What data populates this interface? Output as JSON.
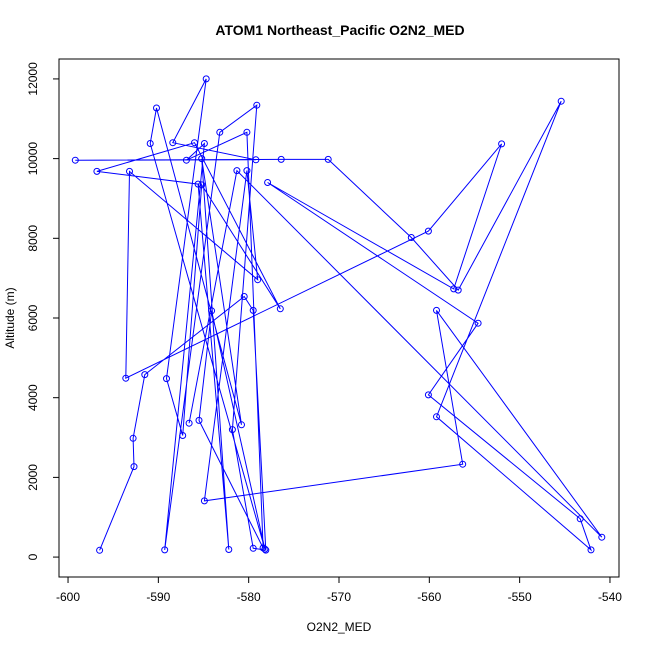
{
  "chart_data": {
    "type": "scatter",
    "title": "ATOM1 Northeast_Pacific O2N2_MED",
    "xlabel": "O2N2_MED",
    "ylabel": "Altitude (m)",
    "xlim": [
      -601,
      -539
    ],
    "ylim": [
      -500,
      12500
    ],
    "xticks": [
      -600,
      -590,
      -580,
      -570,
      -560,
      -550,
      -540
    ],
    "yticks": [
      0,
      2000,
      4000,
      6000,
      8000,
      10000,
      12000
    ],
    "grid": false,
    "color": "#0000ff",
    "marker": "open-circle",
    "connected": true,
    "series": [
      {
        "x": [
          -596.5,
          -592.7,
          -592.8,
          -591.5,
          -580.5,
          -579.5,
          -578.1,
          -579.5,
          -581.8,
          -579.1,
          -583.2,
          -589.3,
          -584.9,
          -586.9,
          -580.2,
          -578.4,
          -585.5,
          -584.1,
          -578.2,
          -590.9,
          -590.2,
          -580.8,
          -585.2,
          -582.2,
          -585.6,
          -596.8,
          -586.0,
          -576.5,
          -585.2,
          -587.3,
          -589.1,
          -584.7,
          -588.4,
          -579.2,
          -599.2,
          -576.4,
          -571.2,
          -562.0,
          -556.8,
          -545.4,
          -559.2,
          -542.1,
          -543.3,
          -560.1,
          -554.6,
          -577.9,
          -557.3,
          -552.0,
          -560.1,
          -593.6,
          -593.2,
          -579.0,
          -580.2,
          -584.9,
          -556.3,
          -559.2,
          -540.9,
          -581.3,
          -586.6
        ],
        "y": [
          170,
          2270,
          2980,
          4580,
          6540,
          6190,
          175,
          220,
          3200,
          11340,
          10660,
          180,
          10380,
          9960,
          10660,
          230,
          3430,
          6180,
          200,
          10380,
          11270,
          3320,
          10000,
          190,
          9360,
          9680,
          10400,
          6230,
          9340,
          3050,
          4480,
          12000,
          10400,
          9970,
          9960,
          9980,
          9980,
          8020,
          6700,
          11440,
          3520,
          180,
          960,
          4070,
          5870,
          9400,
          6730,
          10370,
          8180,
          4490,
          9680,
          6960,
          9700,
          1410,
          2330,
          6190,
          500,
          9700,
          3360
        ]
      }
    ]
  }
}
